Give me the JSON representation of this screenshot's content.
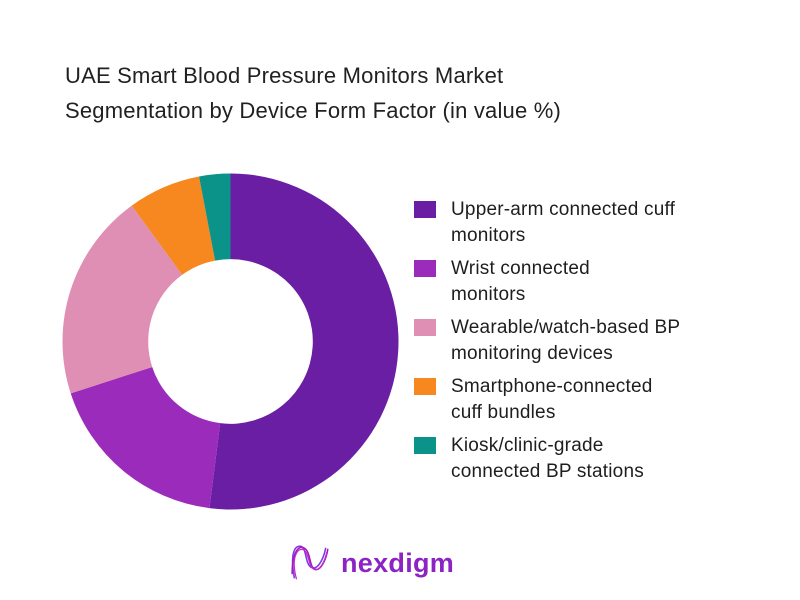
{
  "chart_data": {
    "type": "pie",
    "subtype": "donut",
    "title": "UAE Smart Blood Pressure Monitors Market Segmentation by Device Form Factor (in value %)",
    "labels": [
      "Upper-arm connected cuff monitors",
      "Wrist connected monitors",
      "Wearable/watch-based BP monitoring devices",
      "Smartphone-connected cuff bundles",
      "Kiosk/clinic-grade connected BP stations"
    ],
    "values": [
      52,
      18,
      20,
      7,
      3
    ],
    "unit": "percent of market value",
    "colors": [
      "#6A1EA3",
      "#9B2BBB",
      "#E08FB4",
      "#F6881F",
      "#0B9289"
    ],
    "start_angle_deg": 0,
    "direction": "clockwise",
    "inner_radius_ratio": 0.49,
    "legend_position": "right",
    "data_labels": false
  },
  "legend": {
    "items": [
      {
        "line1": "Upper-arm connected cuff",
        "line2": "monitors"
      },
      {
        "line1": "Wrist connected",
        "line2": "monitors"
      },
      {
        "line1": "Wearable/watch-based BP",
        "line2": "monitoring devices"
      },
      {
        "line1": "Smartphone-connected",
        "line2": "cuff bundles"
      },
      {
        "line1": "Kiosk/clinic-grade",
        "line2": "connected BP stations"
      }
    ]
  },
  "logo": {
    "text": "nexdigm",
    "color": "#8c24c4",
    "icon": "nexdigm-wave-mark"
  }
}
